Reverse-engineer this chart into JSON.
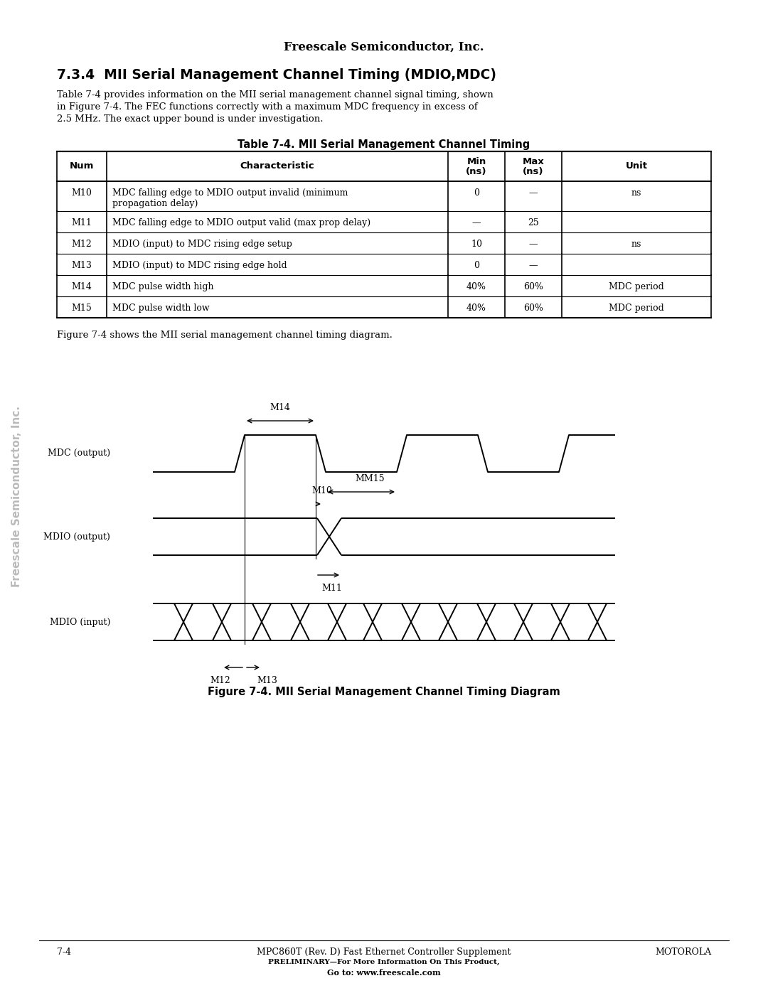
{
  "page_title": "Freescale Semiconductor, Inc.",
  "section_title": "7.3.4  MII Serial Management Channel Timing (MDIO,MDC)",
  "section_body_lines": [
    "Table 7-4 provides information on the MII serial management channel signal timing, shown",
    "in Figure 7-4. The FEC functions correctly with a maximum MDC frequency in excess of",
    "2.5 MHz. The exact upper bound is under investigation."
  ],
  "table_title": "Table 7-4. MII Serial Management Channel Timing",
  "table_headers": [
    "Num",
    "Characteristic",
    "Min\n(ns)",
    "Max\n(ns)",
    "Unit"
  ],
  "table_rows": [
    [
      "M10",
      "MDC falling edge to MDIO output invalid (minimum\npropagation delay)",
      "0",
      "—",
      "ns"
    ],
    [
      "M11",
      "MDC falling edge to MDIO output valid (max prop delay)",
      "—",
      "25",
      ""
    ],
    [
      "M12",
      "MDIO (input) to MDC rising edge setup",
      "10",
      "—",
      "ns"
    ],
    [
      "M13",
      "MDIO (input) to MDC rising edge hold",
      "0",
      "—",
      ""
    ],
    [
      "M14",
      "MDC pulse width high",
      "40%",
      "60%",
      "MDC period"
    ],
    [
      "M15",
      "MDC pulse width low",
      "40%",
      "60%",
      "MDC period"
    ]
  ],
  "fig_caption_prefix": "Figure 7-4 shows the MII serial management channel timing diagram.",
  "fig_title": "Figure 7-4. MII Serial Management Channel Timing Diagram",
  "footer_left": "7-4",
  "footer_center": "MPC860T (Rev. D) Fast Ethernet Controller Supplement",
  "footer_right": "MOTOROLA",
  "footer_line2": "PRELIMINARY—For More Information On This Product,",
  "footer_line3": "Go to: www.freescale.com",
  "sidebar_text": "Freescale Semiconductor, Inc.",
  "bg_color": "#ffffff"
}
